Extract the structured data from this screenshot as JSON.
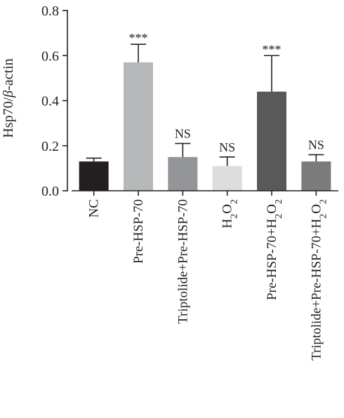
{
  "chart_data": {
    "type": "bar",
    "ylabel": "Hsp70/β-actin",
    "ylim": [
      0,
      0.8
    ],
    "yticks": [
      "0.0",
      "0.2",
      "0.4",
      "0.6",
      "0.8"
    ],
    "categories": [
      "NC",
      "Pre-HSP-70",
      "Triptolide+Pre-HSP-70",
      "H2O2",
      "Pre-HSP-70+H2O2",
      "Triptolide+Pre-HSP-70+H2O2"
    ],
    "values": [
      0.13,
      0.57,
      0.15,
      0.11,
      0.44,
      0.13
    ],
    "errors": [
      0.015,
      0.08,
      0.06,
      0.04,
      0.16,
      0.03
    ],
    "significance": [
      "",
      "***",
      "NS",
      "NS",
      "***",
      "NS"
    ],
    "colors": [
      "#231f20",
      "#b7b8ba",
      "#939598",
      "#dcdddf",
      "#58595b",
      "#7a7b7d"
    ]
  }
}
